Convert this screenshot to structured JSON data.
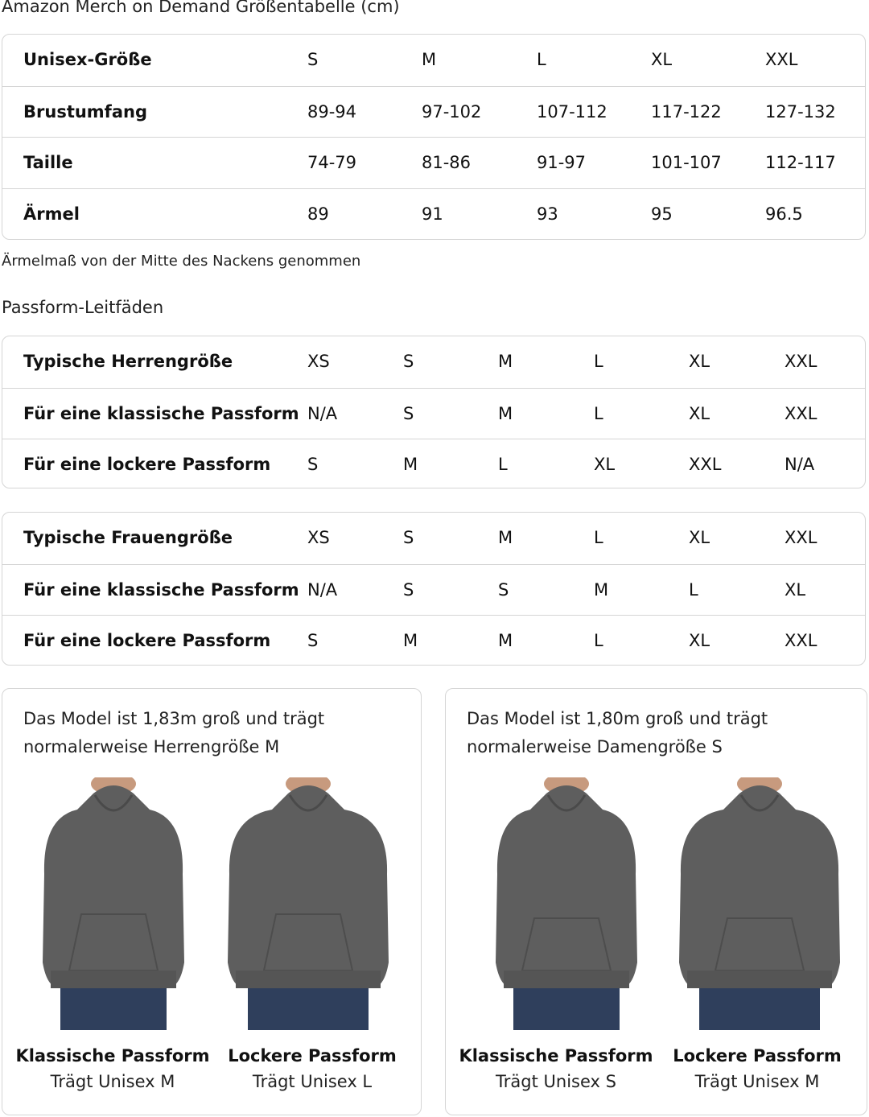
{
  "title": "Amazon Merch on Demand Größentabelle (cm)",
  "size_table": {
    "rows": [
      [
        "Unisex-Größe",
        "S",
        "M",
        "L",
        "XL",
        "XXL"
      ],
      [
        "Brustumfang",
        "89-94",
        "97-102",
        "107-112",
        "117-122",
        "127-132"
      ],
      [
        "Taille",
        "74-79",
        "81-86",
        "91-97",
        "101-107",
        "112-117"
      ],
      [
        "Ärmel",
        "89",
        "91",
        "93",
        "95",
        "96.5"
      ]
    ]
  },
  "note": "Ärmelmaß von der Mitte des Nackens genommen",
  "fit_heading": "Passform-Leitfäden",
  "men_table": {
    "rows": [
      [
        "Typische Herrengröße",
        "XS",
        "S",
        "M",
        "L",
        "XL",
        "XXL"
      ],
      [
        "Für eine klassische Passform",
        "N/A",
        "S",
        "M",
        "L",
        "XL",
        "XXL"
      ],
      [
        "Für eine lockere Passform",
        "S",
        "M",
        "L",
        "XL",
        "XXL",
        "N/A"
      ]
    ]
  },
  "women_table": {
    "rows": [
      [
        "Typische Frauengröße",
        "XS",
        "S",
        "M",
        "L",
        "XL",
        "XXL"
      ],
      [
        "Für eine klassische Passform",
        "N/A",
        "S",
        "S",
        "M",
        "L",
        "XL"
      ],
      [
        "Für eine lockere Passform",
        "S",
        "M",
        "M",
        "L",
        "XL",
        "XXL"
      ]
    ]
  },
  "cards": [
    {
      "text": "Das Model ist 1,83m groß und trägt normalerweise Herrengröße M",
      "figures": [
        {
          "label": "Klassische Passform",
          "sub": "Trägt Unisex M"
        },
        {
          "label": "Lockere Passform",
          "sub": "Trägt Unisex L"
        }
      ]
    },
    {
      "text": "Das Model ist 1,80m groß und trägt normalerweise Damengröße S",
      "figures": [
        {
          "label": "Klassische Passform",
          "sub": "Trägt Unisex S"
        },
        {
          "label": "Lockere Passform",
          "sub": "Trägt Unisex M"
        }
      ]
    }
  ],
  "colors": {
    "hoodie": "#5e5e5e",
    "jeans": "#2f3f5c",
    "border": "#d5d5d5"
  }
}
